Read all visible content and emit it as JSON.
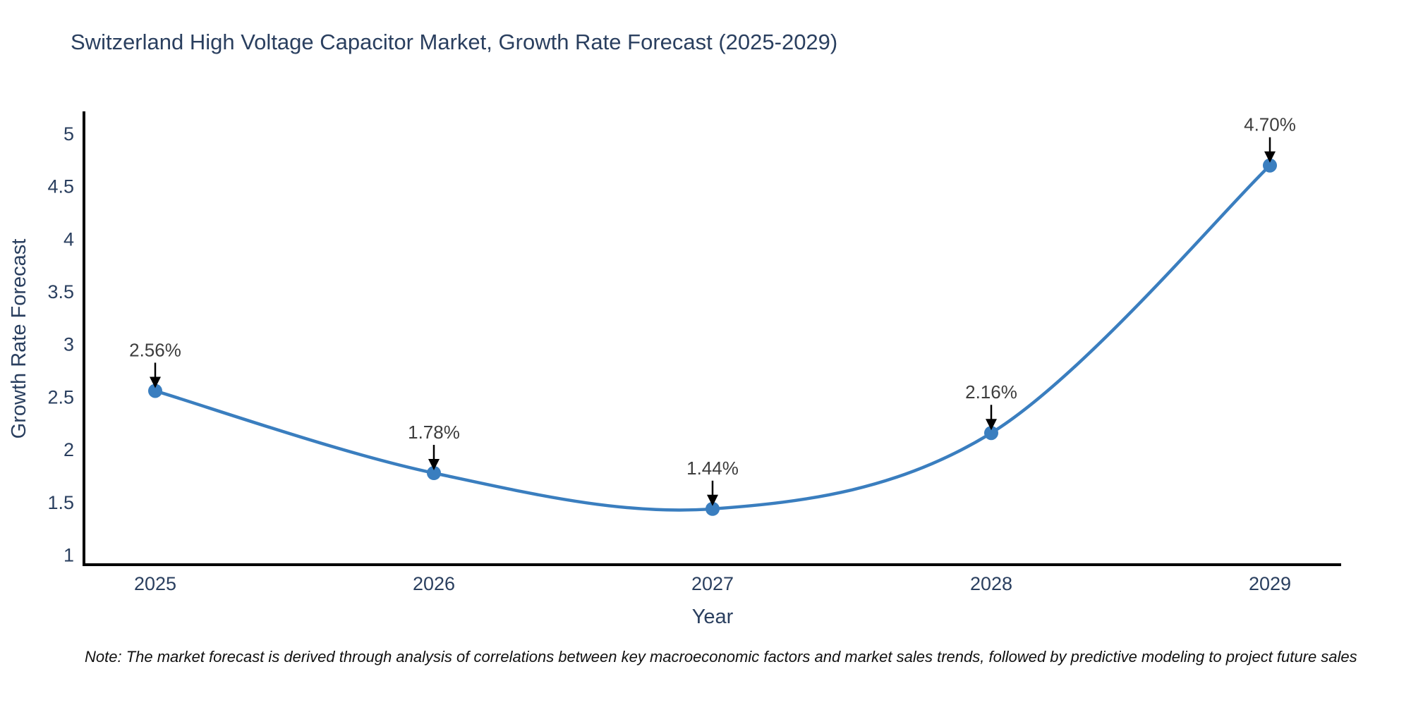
{
  "chart_data": {
    "type": "line",
    "curve": "spline",
    "title": "Switzerland High Voltage Capacitor Market, Growth Rate Forecast (2025-2029)",
    "xlabel": "Year",
    "ylabel": "Growth Rate Forecast",
    "categories": [
      "2025",
      "2026",
      "2027",
      "2028",
      "2029"
    ],
    "values": [
      2.56,
      1.78,
      1.44,
      2.16,
      4.7
    ],
    "point_labels": [
      "2.56%",
      "1.78%",
      "1.44%",
      "2.16%",
      "4.70%"
    ],
    "ytick_values": [
      5,
      4.5,
      4,
      3.5,
      3,
      2.5,
      2,
      1.5,
      1
    ],
    "ytick_labels": [
      "5",
      "4.5",
      "4",
      "3.5",
      "3",
      "2.5",
      "2",
      "1.5",
      "1"
    ],
    "ylim": [
      0.91,
      5.2
    ],
    "grid": false,
    "legend": "none",
    "line_color": "#3a7ebf",
    "marker_color": "#3a7ebf",
    "axis_color": "#000000",
    "arrow_color": "#000000",
    "text_color": "#2a3f5f",
    "annotation_text_color": "#3d3d3d"
  },
  "note": {
    "text": "Note: The market forecast is derived through analysis of correlations between key macroeconomic factors and market sales trends, followed by predictive modeling to project future sales"
  }
}
